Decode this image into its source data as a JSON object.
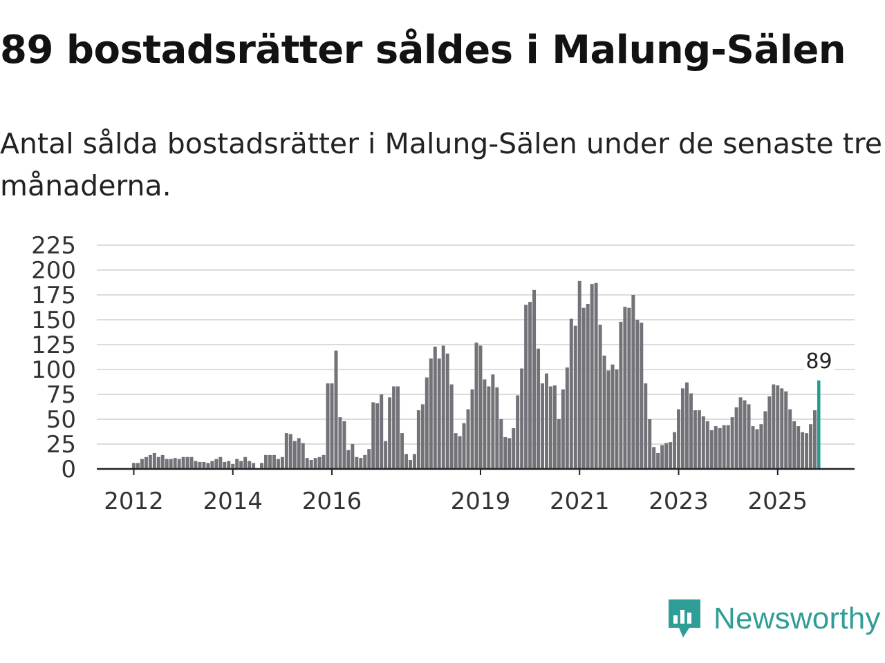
{
  "title": "89 bostadsrätter såldes i Malung-Sälen",
  "subtitle": "Antal sålda bostadsrätter i Malung-Sälen under de senaste tre månaderna.",
  "brand": {
    "name": "Newsworthy",
    "color": "#2f9e96",
    "icon": "newsworthy-logo-icon"
  },
  "chart_data": {
    "type": "bar",
    "title": "",
    "xlabel": "",
    "ylabel": "",
    "ylim": [
      0,
      225
    ],
    "yticks": [
      0,
      25,
      50,
      75,
      100,
      125,
      150,
      175,
      200,
      225
    ],
    "grid": true,
    "bar_color": "#737278",
    "highlight_color": "#1a9e96",
    "x_tick_labels": [
      "2012",
      "2014",
      "2016",
      "2019",
      "2021",
      "2023",
      "2025"
    ],
    "x_tick_indices": [
      1,
      25,
      49,
      85,
      109,
      133,
      157
    ],
    "highlight_label": "89",
    "start": "2011-11",
    "end": "2025-10",
    "values": [
      0,
      6,
      6,
      10,
      12,
      14,
      16,
      12,
      14,
      10,
      10,
      11,
      10,
      12,
      12,
      12,
      8,
      7,
      7,
      6,
      8,
      10,
      12,
      7,
      8,
      5,
      10,
      8,
      12,
      8,
      6,
      0,
      6,
      14,
      14,
      14,
      10,
      12,
      36,
      35,
      28,
      31,
      26,
      11,
      9,
      11,
      12,
      14,
      86,
      86,
      119,
      52,
      48,
      19,
      25,
      12,
      11,
      14,
      20,
      67,
      66,
      75,
      28,
      72,
      83,
      83,
      36,
      15,
      9,
      15,
      59,
      65,
      92,
      111,
      123,
      111,
      124,
      116,
      85,
      36,
      33,
      46,
      60,
      80,
      127,
      124,
      90,
      83,
      95,
      82,
      50,
      32,
      31,
      41,
      74,
      101,
      165,
      168,
      180,
      121,
      86,
      96,
      83,
      84,
      50,
      80,
      102,
      151,
      144,
      189,
      162,
      166,
      186,
      187,
      145,
      114,
      99,
      105,
      100,
      148,
      163,
      162,
      175,
      150,
      147,
      86,
      50,
      22,
      16,
      24,
      26,
      27,
      37,
      60,
      81,
      87,
      76,
      59,
      59,
      53,
      48,
      39,
      43,
      41,
      44,
      44,
      52,
      62,
      72,
      69,
      65,
      43,
      40,
      45,
      58,
      73,
      85,
      84,
      81,
      78,
      60,
      48,
      43,
      37,
      36,
      45,
      59,
      89
    ]
  }
}
